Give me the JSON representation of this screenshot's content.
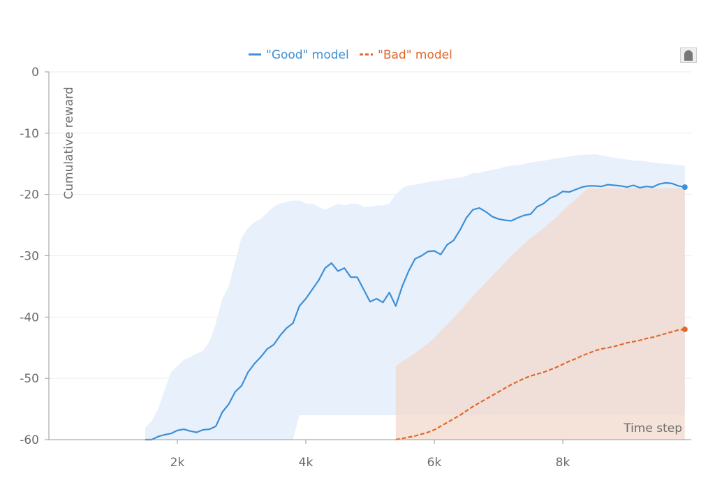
{
  "chart_data": {
    "type": "line",
    "xlabel": "Time step",
    "ylabel": "Cumulative reward",
    "xlim": [
      0,
      10000
    ],
    "ylim": [
      -60,
      0
    ],
    "x_ticks": [
      2000,
      4000,
      6000,
      8000
    ],
    "x_tick_labels": [
      "2k",
      "4k",
      "6k",
      "8k"
    ],
    "y_ticks": [
      0,
      -10,
      -20,
      -30,
      -40,
      -50,
      -60
    ],
    "y_tick_labels": [
      "0",
      "-10",
      "-20",
      "-30",
      "-40",
      "-50",
      "-60"
    ],
    "grid": true,
    "legend_position": "top-center",
    "series": [
      {
        "name": "\"Good\" model",
        "color": "#3d8fd6",
        "band_color": "#e7f0fb",
        "line_style": "solid",
        "x": [
          1500,
          1600,
          1700,
          1800,
          1900,
          2000,
          2100,
          2200,
          2300,
          2400,
          2500,
          2600,
          2700,
          2800,
          2900,
          3000,
          3100,
          3200,
          3300,
          3400,
          3500,
          3600,
          3700,
          3800,
          3900,
          4000,
          4100,
          4200,
          4300,
          4400,
          4500,
          4600,
          4700,
          4800,
          4900,
          5000,
          5100,
          5200,
          5300,
          5400,
          5500,
          5600,
          5700,
          5800,
          5900,
          6000,
          6100,
          6200,
          6300,
          6400,
          6500,
          6600,
          6700,
          6800,
          6900,
          7000,
          7100,
          7200,
          7300,
          7400,
          7500,
          7600,
          7700,
          7800,
          7900,
          8000,
          8100,
          8200,
          8300,
          8400,
          8500,
          8600,
          8700,
          8800,
          8900,
          9000,
          9100,
          9200,
          9300,
          9400,
          9500,
          9600,
          9700,
          9800,
          9900
        ],
        "y": [
          -60,
          -60,
          -59.5,
          -59.2,
          -59,
          -58.5,
          -58.3,
          -58.6,
          -58.8,
          -58.4,
          -58.3,
          -57.8,
          -55.5,
          -54.2,
          -52.2,
          -51.2,
          -49,
          -47.6,
          -46.5,
          -45.2,
          -44.5,
          -43,
          -41.8,
          -41,
          -38.2,
          -37,
          -35.5,
          -34,
          -32,
          -31.2,
          -32.5,
          -32,
          -33.5,
          -33.5,
          -35.5,
          -37.5,
          -37,
          -37.6,
          -36,
          -38.2,
          -35,
          -32.5,
          -30.5,
          -30,
          -29.3,
          -29.2,
          -29.8,
          -28.2,
          -27.5,
          -25.8,
          -23.8,
          -22.5,
          -22.2,
          -22.8,
          -23.6,
          -24,
          -24.2,
          -24.3,
          -23.8,
          -23.4,
          -23.2,
          -22,
          -21.5,
          -20.6,
          -20.2,
          -19.5,
          -19.6,
          -19.2,
          -18.8,
          -18.6,
          -18.6,
          -18.7,
          -18.4,
          -18.5,
          -18.6,
          -18.8,
          -18.5,
          -18.9,
          -18.7,
          -18.8,
          -18.3,
          -18.1,
          -18.2,
          -18.6,
          -18.8
        ],
        "y_upper": [
          -58,
          -57,
          -55,
          -52,
          -49,
          -48,
          -47,
          -46.5,
          -46,
          -45.5,
          -44,
          -41,
          -37,
          -35,
          -31,
          -27,
          -25.5,
          -24.5,
          -24,
          -23,
          -22,
          -21.5,
          -21.2,
          -21,
          -21,
          -21.5,
          -21.5,
          -22,
          -22.5,
          -22,
          -21.5,
          -21.8,
          -21.5,
          -21.5,
          -22,
          -22,
          -21.8,
          -21.8,
          -21.5,
          -20,
          -19,
          -18.5,
          -18.4,
          -18.2,
          -18,
          -17.8,
          -17.7,
          -17.5,
          -17.4,
          -17.2,
          -17,
          -16.5,
          -16.5,
          -16.2,
          -16,
          -15.8,
          -15.5,
          -15.3,
          -15.2,
          -15,
          -14.8,
          -14.6,
          -14.5,
          -14.3,
          -14.1,
          -14,
          -13.8,
          -13.6,
          -13.5,
          -13.5,
          -13.4,
          -13.6,
          -13.8,
          -14,
          -14.2,
          -14.3,
          -14.5,
          -14.5,
          -14.6,
          -14.8,
          -14.9,
          -15,
          -15.1,
          -15.2,
          -15.3
        ],
        "y_lower": [
          -60,
          -60,
          -60,
          -60,
          -60,
          -60,
          -60,
          -60,
          -60,
          -60,
          -60,
          -60,
          -60,
          -60,
          -60,
          -60,
          -60,
          -60,
          -60,
          -60,
          -60,
          -60,
          -60,
          -60,
          -56,
          -56,
          -56,
          -56,
          -56,
          -56,
          -56,
          -56,
          -56,
          -56,
          -56,
          -56,
          -56,
          -56,
          -56,
          -56,
          -56,
          -56,
          -56,
          -56,
          -56,
          -56,
          -56,
          -56,
          -56,
          -56,
          -56,
          -56,
          -56,
          -56,
          -56,
          -56,
          -56,
          -56,
          -56,
          -56,
          -56,
          -56,
          -56,
          -56,
          -56,
          -56,
          -56,
          -56,
          -56,
          -56,
          -56,
          -56,
          -56,
          -56,
          -56,
          -56,
          -56,
          -56,
          -56,
          -56,
          -56,
          -56,
          -56,
          -56,
          -56
        ]
      },
      {
        "name": "\"Bad\" model",
        "color": "#e0682a",
        "band_color": "#f1d9cc",
        "line_style": "dashed",
        "x": [
          5400,
          5500,
          5600,
          5700,
          5800,
          5900,
          6000,
          6100,
          6200,
          6300,
          6400,
          6500,
          6600,
          6700,
          6800,
          6900,
          7000,
          7100,
          7200,
          7300,
          7400,
          7500,
          7600,
          7700,
          7800,
          7900,
          8000,
          8100,
          8200,
          8300,
          8400,
          8500,
          8600,
          8700,
          8800,
          8900,
          9000,
          9100,
          9200,
          9300,
          9400,
          9500,
          9600,
          9700,
          9800,
          9900
        ],
        "y": [
          -60,
          -59.8,
          -59.6,
          -59.4,
          -59.1,
          -58.8,
          -58.4,
          -57.8,
          -57.2,
          -56.6,
          -56,
          -55.3,
          -54.6,
          -54,
          -53.4,
          -52.8,
          -52.2,
          -51.6,
          -51,
          -50.5,
          -50,
          -49.6,
          -49.3,
          -49,
          -48.6,
          -48.2,
          -47.7,
          -47.2,
          -46.8,
          -46.3,
          -45.9,
          -45.5,
          -45.2,
          -45,
          -44.8,
          -44.5,
          -44.2,
          -44,
          -43.8,
          -43.5,
          -43.3,
          -43,
          -42.7,
          -42.4,
          -42.1,
          -42
        ]
      }
    ]
  },
  "legend": {
    "good_label": "\"Good\" model",
    "bad_label": "\"Bad\" model"
  },
  "axes": {
    "y_title": "Cumulative reward",
    "x_title": "Time step"
  }
}
